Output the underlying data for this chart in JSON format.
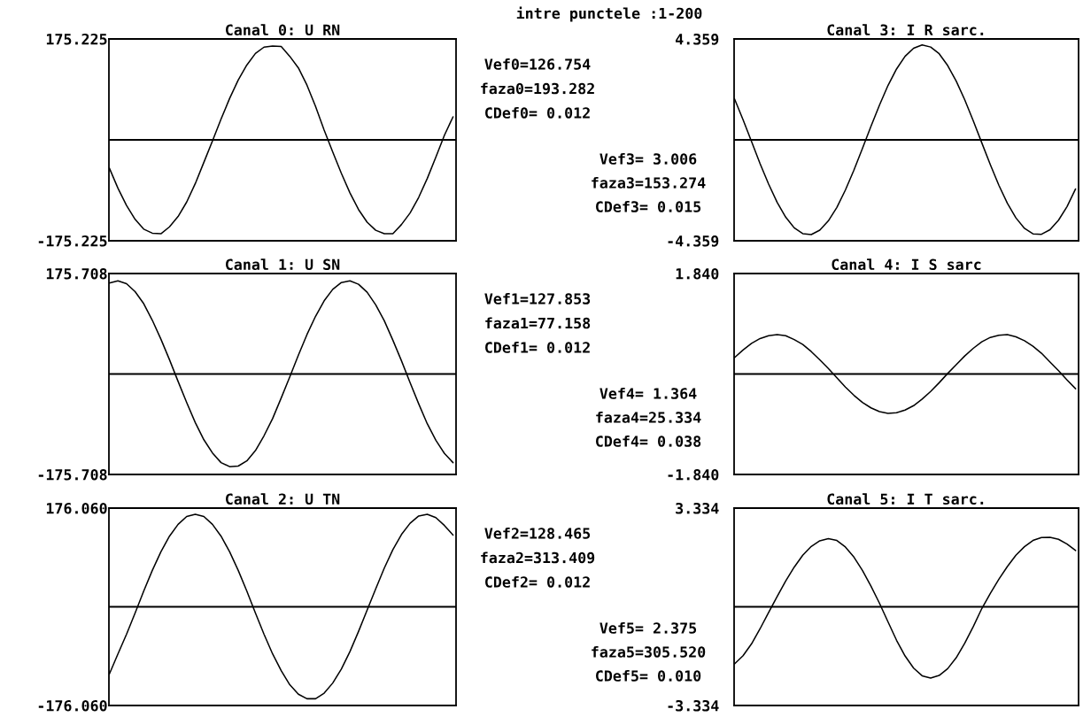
{
  "chart_data": [
    {
      "type": "other",
      "title": "intre punctele :1-200"
    },
    {
      "type": "line",
      "title": "Canal 0: U RN",
      "categories": [
        null,
        null,
        null,
        null,
        null,
        null,
        null,
        null,
        null,
        null,
        null,
        null,
        null,
        null,
        null,
        null,
        null,
        null,
        null,
        null,
        null,
        null,
        null,
        null,
        null,
        null,
        null,
        null,
        null,
        null,
        null,
        null,
        null,
        null,
        null,
        null,
        null,
        null,
        null,
        null,
        null
      ],
      "values": [
        -49,
        -84,
        -114,
        -138,
        -155,
        -162,
        -163,
        -151,
        -133,
        -108,
        -76,
        -39,
        -2,
        36,
        72,
        104,
        130,
        150,
        161,
        163,
        162,
        145,
        125,
        95,
        58,
        17,
        -21,
        -58,
        -92,
        -121,
        -143,
        -157,
        -163,
        -163,
        -147,
        -127,
        -100,
        -67,
        -30,
        8,
        40
      ],
      "color": "#000000",
      "ylim": [
        -175.225,
        175.225
      ],
      "yticks": [
        -175.225,
        175.225
      ],
      "tick_labels": "y",
      "ref_lines": [
        {
          "axis": "y",
          "value": 0,
          "color": "#000000"
        }
      ],
      "annotations": [
        "Vef0=126.754",
        "faza0=193.282",
        "CDef0= 0.012"
      ]
    },
    {
      "type": "line",
      "title": "Canal 3: I R sarc.",
      "categories": [
        null,
        null,
        null,
        null,
        null,
        null,
        null,
        null,
        null,
        null,
        null,
        null,
        null,
        null,
        null,
        null,
        null,
        null,
        null,
        null,
        null,
        null,
        null,
        null,
        null,
        null,
        null,
        null,
        null,
        null,
        null,
        null,
        null,
        null,
        null,
        null,
        null,
        null,
        null,
        null,
        null
      ],
      "values": [
        1.77,
        0.87,
        -0.08,
        -1.03,
        -1.91,
        -2.7,
        -3.34,
        -3.8,
        -4.05,
        -4.09,
        -3.9,
        -3.5,
        -2.92,
        -2.17,
        -1.31,
        -0.37,
        0.58,
        1.5,
        2.35,
        3.06,
        3.61,
        3.96,
        4.1,
        4.01,
        3.72,
        3.21,
        2.54,
        1.73,
        0.82,
        -0.13,
        -1.07,
        -1.96,
        -2.74,
        -3.37,
        -3.82,
        -4.06,
        -4.08,
        -3.88,
        -3.47,
        -2.88,
        -2.12
      ],
      "color": "#000000",
      "ylim": [
        -4.359,
        4.359
      ],
      "yticks": [
        -4.359,
        4.359
      ],
      "tick_labels": "y",
      "ref_lines": [
        {
          "axis": "y",
          "value": 0,
          "color": "#000000"
        }
      ],
      "annotations": [
        "Vef3= 3.006",
        "faza3=153.274",
        "CDef3= 0.015"
      ]
    },
    {
      "type": "line",
      "title": "Canal 1: U SN",
      "categories": [
        null,
        null,
        null,
        null,
        null,
        null,
        null,
        null,
        null,
        null,
        null,
        null,
        null,
        null,
        null,
        null,
        null,
        null,
        null,
        null,
        null,
        null,
        null,
        null,
        null,
        null,
        null,
        null,
        null,
        null,
        null,
        null,
        null,
        null,
        null,
        null,
        null,
        null,
        null,
        null,
        null
      ],
      "values": [
        159,
        163,
        158,
        144,
        123,
        94,
        61,
        25,
        -13,
        -50,
        -85,
        -115,
        -138,
        -155,
        -162,
        -161,
        -152,
        -134,
        -108,
        -78,
        -42,
        -5,
        33,
        69,
        101,
        128,
        148,
        160,
        163,
        157,
        143,
        121,
        93,
        59,
        23,
        -15,
        -52,
        -87,
        -116,
        -139,
        -155
      ],
      "color": "#000000",
      "ylim": [
        -175.708,
        175.708
      ],
      "yticks": [
        -175.708,
        175.708
      ],
      "tick_labels": "y",
      "ref_lines": [
        {
          "axis": "y",
          "value": 0,
          "color": "#000000"
        }
      ],
      "annotations": [
        "Vef1=127.853",
        "faza1=77.158",
        "CDef1= 0.012"
      ]
    },
    {
      "type": "line",
      "title": "Canal 4: I S sarc",
      "categories": [
        null,
        null,
        null,
        null,
        null,
        null,
        null,
        null,
        null,
        null,
        null,
        null,
        null,
        null,
        null,
        null,
        null,
        null,
        null,
        null,
        null,
        null,
        null,
        null,
        null,
        null,
        null,
        null,
        null,
        null,
        null,
        null,
        null,
        null,
        null,
        null,
        null,
        null,
        null,
        null,
        null
      ],
      "values": [
        0.3,
        0.44,
        0.56,
        0.65,
        0.7,
        0.72,
        0.7,
        0.63,
        0.54,
        0.41,
        0.26,
        0.1,
        -0.07,
        -0.24,
        -0.39,
        -0.52,
        -0.62,
        -0.69,
        -0.72,
        -0.71,
        -0.66,
        -0.58,
        -0.46,
        -0.32,
        -0.16,
        0.01,
        0.17,
        0.33,
        0.47,
        0.59,
        0.67,
        0.71,
        0.72,
        0.68,
        0.61,
        0.51,
        0.38,
        0.22,
        0.06,
        -0.11,
        -0.27
      ],
      "color": "#000000",
      "ylim": [
        -1.84,
        1.84
      ],
      "yticks": [
        {
          "value": -1.84,
          "label": "-1.840"
        },
        {
          "value": 1.84,
          "label": "1.840"
        }
      ],
      "tick_labels": "y",
      "ref_lines": [
        {
          "axis": "y",
          "value": 0,
          "color": "#000000"
        }
      ],
      "annotations": [
        "Vef4= 1.364",
        "faza4=25.334",
        "CDef4= 0.038"
      ]
    },
    {
      "type": "line",
      "title": "Canal 2: U TN",
      "categories": [
        null,
        null,
        null,
        null,
        null,
        null,
        null,
        null,
        null,
        null,
        null,
        null,
        null,
        null,
        null,
        null,
        null,
        null,
        null,
        null,
        null,
        null,
        null,
        null,
        null,
        null,
        null,
        null,
        null,
        null,
        null,
        null,
        null,
        null,
        null,
        null,
        null,
        null,
        null,
        null,
        null
      ],
      "values": [
        -120,
        -84,
        -49,
        -11,
        28,
        65,
        98,
        126,
        147,
        161,
        165,
        161,
        147,
        126,
        98,
        65,
        28,
        -11,
        -49,
        -84,
        -114,
        -139,
        -156,
        -164,
        -164,
        -154,
        -136,
        -111,
        -80,
        -44,
        -6,
        32,
        69,
        102,
        129,
        149,
        162,
        165,
        159,
        145,
        128
      ],
      "color": "#000000",
      "ylim": [
        -176.06,
        176.06
      ],
      "yticks": [
        {
          "value": -176.06,
          "label": "-176.060"
        },
        {
          "value": 176.06,
          "label": "176.060"
        }
      ],
      "tick_labels": "y",
      "ref_lines": [
        {
          "axis": "y",
          "value": 0,
          "color": "#000000"
        }
      ],
      "annotations": [
        "Vef2=128.465",
        "faza2=313.409",
        "CDef2= 0.012"
      ]
    },
    {
      "type": "line",
      "title": "Canal 5: I T sarc.",
      "categories": [
        null,
        null,
        null,
        null,
        null,
        null,
        null,
        null,
        null,
        null,
        null,
        null,
        null,
        null,
        null,
        null,
        null,
        null,
        null,
        null,
        null,
        null,
        null,
        null,
        null,
        null,
        null,
        null,
        null,
        null,
        null,
        null,
        null,
        null,
        null,
        null,
        null,
        null,
        null,
        null,
        null
      ],
      "values": [
        -1.93,
        -1.65,
        -1.25,
        -0.74,
        -0.19,
        0.35,
        0.87,
        1.34,
        1.74,
        2.04,
        2.23,
        2.3,
        2.24,
        2.02,
        1.68,
        1.23,
        0.7,
        0.12,
        -0.51,
        -1.13,
        -1.66,
        -2.07,
        -2.33,
        -2.41,
        -2.32,
        -2.09,
        -1.72,
        -1.23,
        -0.67,
        -0.06,
        0.45,
        0.93,
        1.36,
        1.74,
        2.03,
        2.24,
        2.34,
        2.35,
        2.28,
        2.12,
        1.9
      ],
      "color": "#000000",
      "ylim": [
        -3.334,
        3.334
      ],
      "yticks": [
        -3.334,
        3.334
      ],
      "tick_labels": "y",
      "ref_lines": [
        {
          "axis": "y",
          "value": 0,
          "color": "#000000"
        }
      ],
      "annotations": [
        "Vef5= 2.375",
        "faza5=305.520",
        "CDef5= 0.010"
      ]
    }
  ]
}
